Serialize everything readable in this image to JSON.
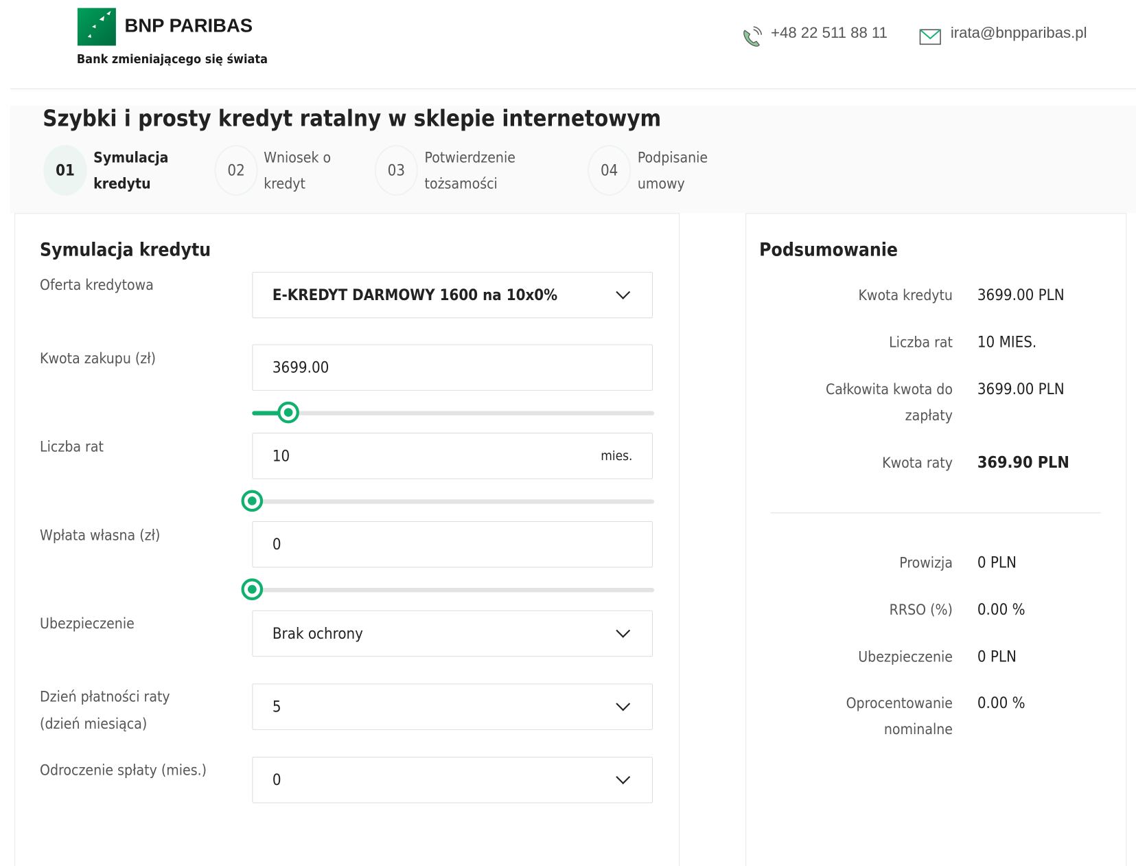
{
  "header": {
    "brand": "BNP PARIBAS",
    "tagline": "Bank zmieniającego się świata",
    "phone": "+48 22 511 88 11",
    "email": "irata@bnpparibas.pl",
    "brand_color": "#00915A"
  },
  "page_title": "Szybki i prosty kredyt ratalny w sklepie internetowym",
  "steps": [
    {
      "num": "01",
      "line1": "Symulacja",
      "line2": "kredytu",
      "active": true
    },
    {
      "num": "02",
      "line1": "Wniosek o",
      "line2": "kredyt",
      "active": false
    },
    {
      "num": "03",
      "line1": "Potwierdzenie",
      "line2": "tożsamości",
      "active": false
    },
    {
      "num": "04",
      "line1": "Podpisanie",
      "line2": "umowy",
      "active": false
    }
  ],
  "form": {
    "title": "Symulacja kredytu",
    "offer_label": "Oferta kredytowa",
    "offer_value": "E-KREDYT DARMOWY 1600 na 10x0%",
    "amount_label": "Kwota zakupu (zł)",
    "amount_value": "3699.00",
    "amount_slider_percent": 9,
    "installments_label": "Liczba rat",
    "installments_value": "10",
    "installments_unit": "mies.",
    "installments_slider_percent": 0,
    "down_label": "Wpłata własna (zł)",
    "down_value": "0",
    "down_slider_percent": 0,
    "insurance_label": "Ubezpieczenie",
    "insurance_value": "Brak ochrony",
    "payday_label_1": "Dzień płatności raty",
    "payday_label_2": "(dzień miesiąca)",
    "payday_value": "5",
    "deferral_label": "Odroczenie spłaty (mies.)",
    "deferral_value": "0",
    "accent_color": "#10B06F"
  },
  "summary": {
    "title": "Podsumowanie",
    "loan_amount_label": "Kwota kredytu",
    "loan_amount_value": "3699.00 PLN",
    "installments_label": "Liczba rat",
    "installments_value": "10 MIES.",
    "total_label_1": "Całkowita kwota do",
    "total_label_2": "zapłaty",
    "total_value": "3699.00 PLN",
    "installment_label": "Kwota raty",
    "installment_value": "369.90 PLN",
    "commission_label": "Prowizja",
    "commission_value": "0 PLN",
    "rrso_label": "RRSO (%)",
    "rrso_value": "0.00 %",
    "insurance_label": "Ubezpieczenie",
    "insurance_value": "0 PLN",
    "interest_label_1": "Oprocentowanie",
    "interest_label_2": "nominalne",
    "interest_value": "0.00 %"
  }
}
